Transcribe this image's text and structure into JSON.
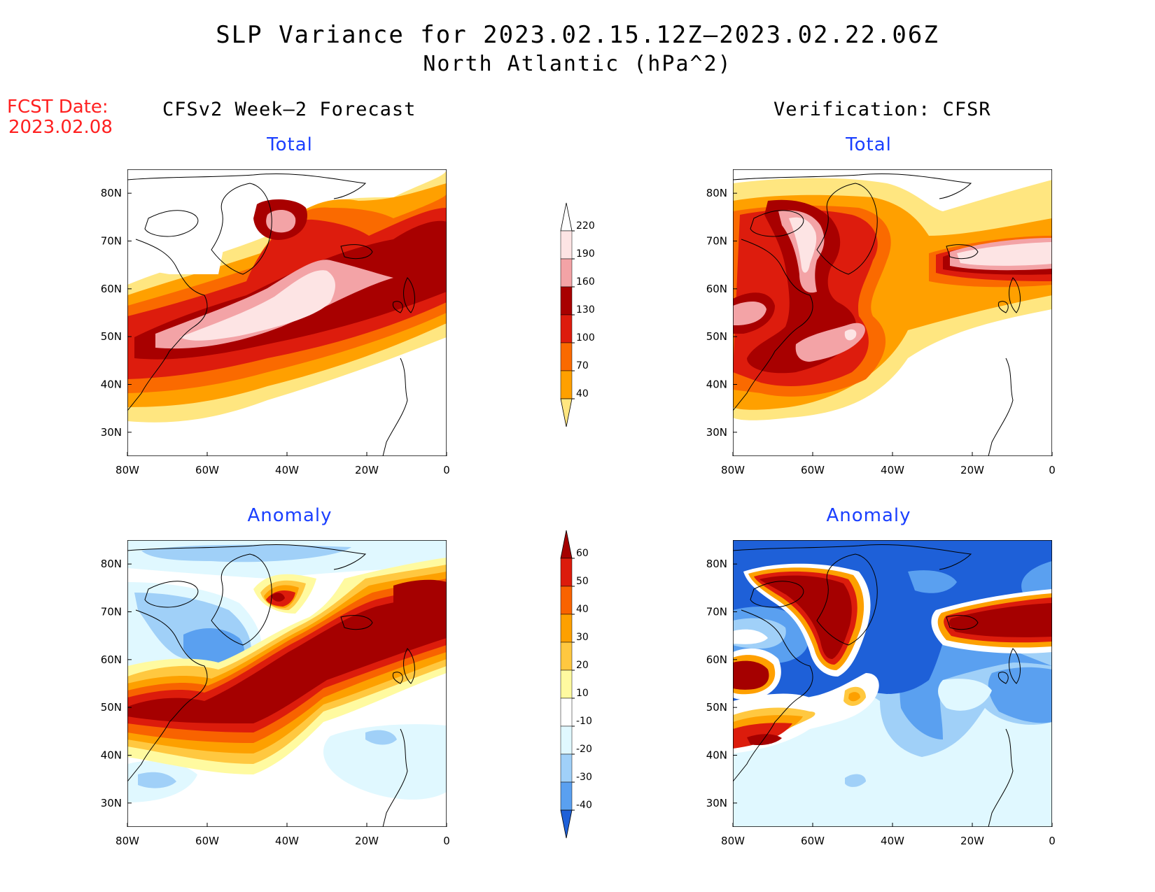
{
  "title": {
    "line1": "SLP Variance for 2023.02.15.12Z–2023.02.22.06Z",
    "line2": "North Atlantic (hPa^2)"
  },
  "forecast_date": {
    "label": "FCST Date:",
    "value": "2023.02.08"
  },
  "columns": {
    "left": "CFSv2 Week–2 Forecast",
    "right": "Verification: CFSR"
  },
  "panels": {
    "forecast_total": "Total",
    "verification_total": "Total",
    "forecast_anomaly": "Anomaly",
    "verification_anomaly": "Anomaly"
  },
  "axes": {
    "lon_labels": [
      "80W",
      "60W",
      "40W",
      "20W",
      "0"
    ],
    "lat_labels": [
      "80N",
      "70N",
      "60N",
      "50N",
      "40N",
      "30N"
    ],
    "lon_range": [
      -80,
      0
    ],
    "lat_range": [
      25,
      85
    ]
  },
  "colorbars": {
    "total": {
      "levels": [
        "220",
        "190",
        "160",
        "130",
        "100",
        "70",
        "40"
      ],
      "colors": [
        "#fde4e4",
        "#f3a3a6",
        "#a80000",
        "#dd1c0d",
        "#fa6a00",
        "#ffa000",
        "#ffe680"
      ]
    },
    "anomaly": {
      "levels": [
        "60",
        "50",
        "40",
        "30",
        "20",
        "10",
        "-10",
        "-20",
        "-30",
        "-40"
      ],
      "colors": [
        "#a50000",
        "#dc1c0c",
        "#f86300",
        "#fda000",
        "#ffc840",
        "#fffaa0",
        "#ffffff",
        "#e0f8ff",
        "#a0d0f8",
        "#5aa0f0",
        "#1e60d8"
      ]
    }
  }
}
